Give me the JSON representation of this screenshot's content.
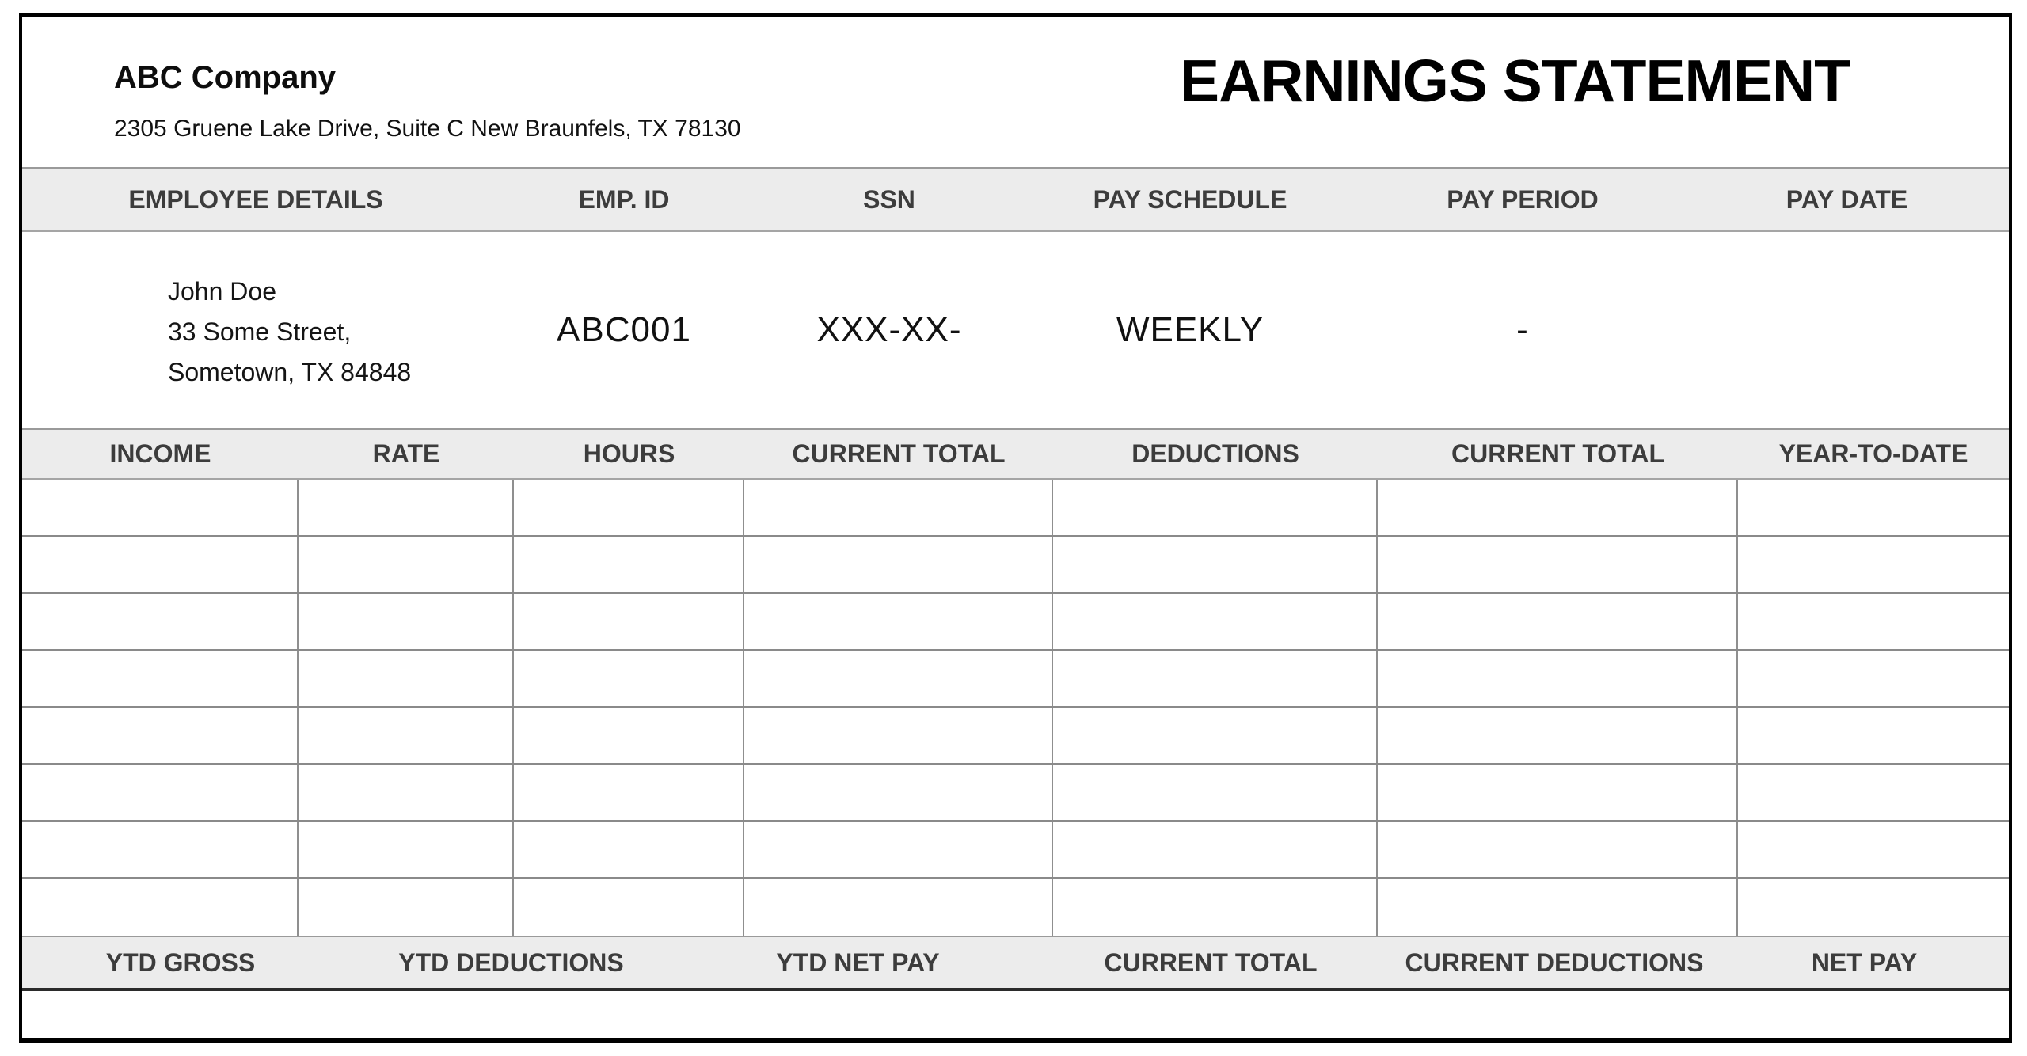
{
  "document": {
    "company_name": "ABC Company",
    "company_address": "2305 Gruene Lake Drive, Suite C New Braunfels, TX 78130",
    "title": "EARNINGS STATEMENT"
  },
  "employee_header": {
    "columns": [
      "EMPLOYEE DETAILS",
      "EMP. ID",
      "SSN",
      "PAY SCHEDULE",
      "PAY PERIOD",
      "PAY DATE"
    ]
  },
  "employee": {
    "name": "John Doe",
    "address_line1": "33 Some Street,",
    "address_line2": "Sometown, TX 84848",
    "emp_id": "ABC001",
    "ssn": "XXX-XX-",
    "pay_schedule": "WEEKLY",
    "pay_period": "-",
    "pay_date": ""
  },
  "earnings_header": {
    "columns": [
      "INCOME",
      "RATE",
      "HOURS",
      "CURRENT TOTAL",
      "DEDUCTIONS",
      "CURRENT TOTAL",
      "YEAR-TO-DATE"
    ]
  },
  "earnings_table": {
    "rows": 8,
    "columns": 7,
    "cells": [
      [
        "",
        "",
        "",
        "",
        "",
        "",
        ""
      ],
      [
        "",
        "",
        "",
        "",
        "",
        "",
        ""
      ],
      [
        "",
        "",
        "",
        "",
        "",
        "",
        ""
      ],
      [
        "",
        "",
        "",
        "",
        "",
        "",
        ""
      ],
      [
        "",
        "",
        "",
        "",
        "",
        "",
        ""
      ],
      [
        "",
        "",
        "",
        "",
        "",
        "",
        ""
      ],
      [
        "",
        "",
        "",
        "",
        "",
        "",
        ""
      ],
      [
        "",
        "",
        "",
        "",
        "",
        "",
        ""
      ]
    ]
  },
  "summary_header": {
    "columns": [
      "YTD GROSS",
      "YTD DEDUCTIONS",
      "YTD NET PAY",
      "CURRENT TOTAL",
      "CURRENT DEDUCTIONS",
      "NET PAY"
    ]
  },
  "summary_values": {
    "ytd_gross": "",
    "ytd_deductions": "",
    "ytd_net_pay": "",
    "current_total": "",
    "current_deductions": "",
    "net_pay": ""
  },
  "colors": {
    "band_background": "#ececec",
    "band_text": "#3c3c3c",
    "grid_line": "#8a8a8a",
    "border": "#000000"
  }
}
